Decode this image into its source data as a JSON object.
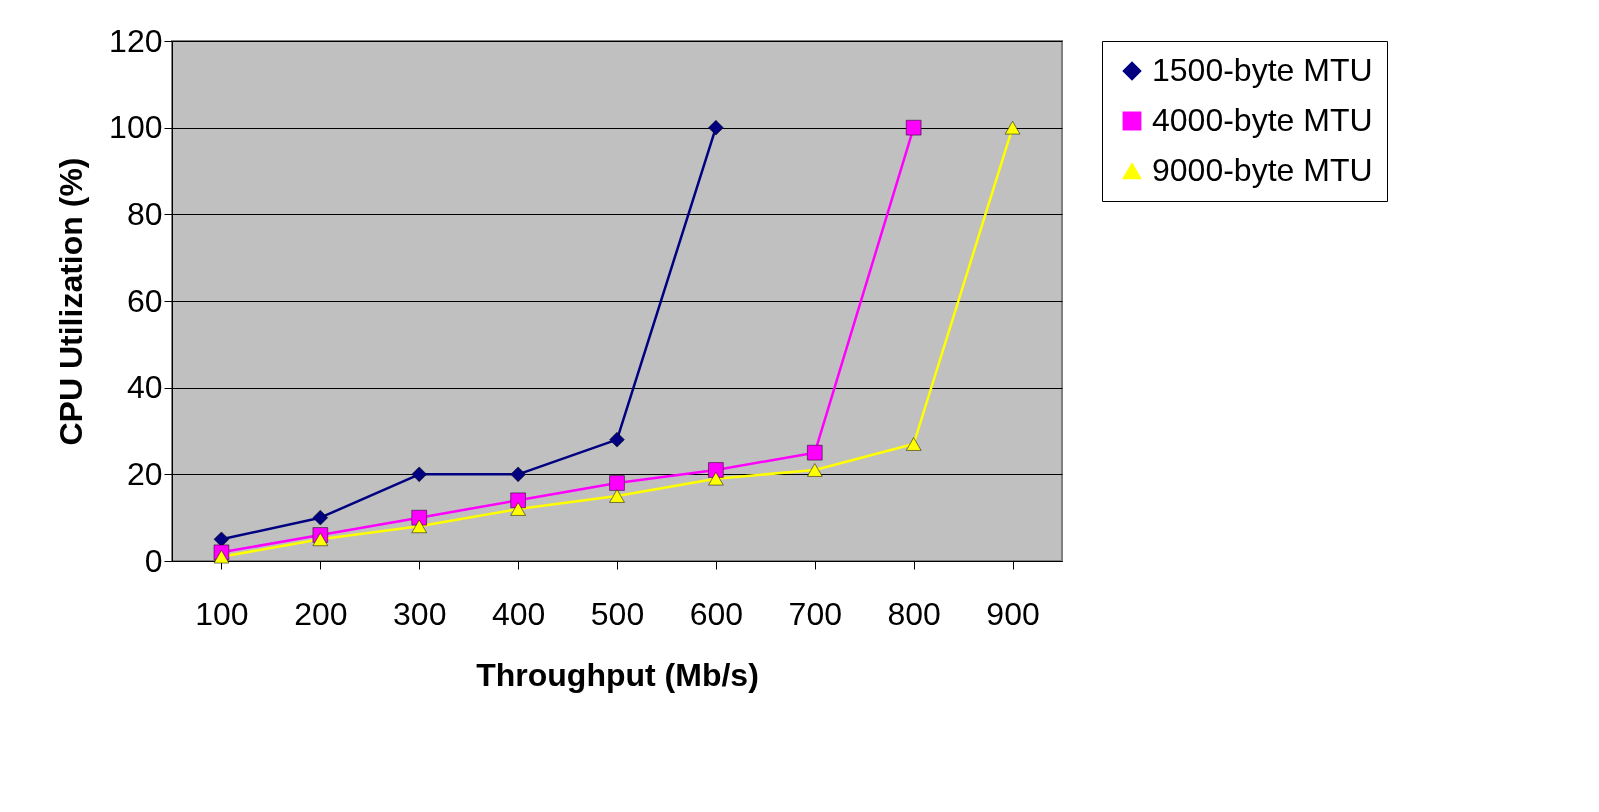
{
  "chart_data": {
    "type": "line",
    "xlabel": "Throughput (Mb/s)",
    "ylabel": "CPU Utilization (%)",
    "categories": [
      "100",
      "200",
      "300",
      "400",
      "500",
      "600",
      "700",
      "800",
      "900"
    ],
    "series": [
      {
        "name": "1500-byte MTU",
        "color": "#000080",
        "marker": "diamond",
        "values": [
          5,
          10,
          20,
          20,
          28,
          100,
          null,
          null,
          null
        ]
      },
      {
        "name": "4000-byte MTU",
        "color": "#ff00ff",
        "marker": "square",
        "values": [
          2,
          6,
          10,
          14,
          18,
          21,
          25,
          100,
          null
        ]
      },
      {
        "name": "9000-byte MTU",
        "color": "#ffff00",
        "marker": "triangle",
        "values": [
          1,
          5,
          8,
          12,
          15,
          19,
          21,
          27,
          100
        ]
      }
    ],
    "ylim": [
      0,
      120
    ],
    "yticks": [
      0,
      20,
      40,
      60,
      80,
      100,
      120
    ],
    "grid": "y",
    "legend": "right",
    "line_style": "solid"
  }
}
